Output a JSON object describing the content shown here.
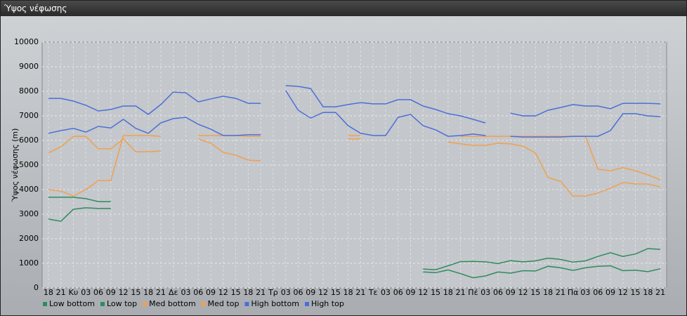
{
  "header": {
    "title": "Ύψος νέφωσης"
  },
  "chart_data": {
    "type": "line",
    "y_label": "Ύψος νέφωσης (m)",
    "categories": [
      "18",
      "21",
      "Κυ",
      "03",
      "06",
      "09",
      "12",
      "15",
      "18",
      "21",
      "Δε",
      "03",
      "06",
      "09",
      "12",
      "15",
      "18",
      "21",
      "Τρ",
      "03",
      "06",
      "09",
      "12",
      "15",
      "18",
      "21",
      "Τε",
      "03",
      "06",
      "09",
      "12",
      "15",
      "18",
      "21",
      "Πέ",
      "03",
      "06",
      "09",
      "12",
      "15",
      "18",
      "21",
      "Πα",
      "03",
      "06",
      "09",
      "12",
      "15",
      "18",
      "21"
    ],
    "ylim": [
      0,
      10000
    ],
    "yticks": [
      0,
      1000,
      2000,
      3000,
      4000,
      5000,
      6000,
      7000,
      8000,
      9000,
      10000
    ],
    "grid": true,
    "legend": "bottom-left",
    "series": [
      {
        "name": "Low bottom",
        "color": "#2e8b5e",
        "values": [
          2800,
          2710,
          3200,
          3260,
          3230,
          3230,
          null,
          null,
          null,
          null,
          null,
          null,
          null,
          null,
          null,
          null,
          null,
          null,
          null,
          null,
          null,
          null,
          null,
          null,
          null,
          null,
          null,
          null,
          null,
          null,
          650,
          620,
          730,
          580,
          410,
          490,
          650,
          600,
          700,
          690,
          880,
          820,
          710,
          820,
          880,
          900,
          700,
          720,
          660,
          780
        ]
      },
      {
        "name": "Low top",
        "color": "#2e8b5e",
        "values": [
          3690,
          3690,
          3690,
          3630,
          3510,
          3510,
          null,
          null,
          null,
          null,
          null,
          null,
          null,
          null,
          null,
          null,
          null,
          null,
          null,
          null,
          null,
          null,
          null,
          null,
          null,
          null,
          null,
          null,
          null,
          null,
          770,
          740,
          900,
          1070,
          1080,
          1060,
          990,
          1110,
          1060,
          1100,
          1210,
          1160,
          1050,
          1100,
          1280,
          1430,
          1280,
          1380,
          1600,
          1570
        ]
      },
      {
        "name": "Med bottom",
        "color": "#f0a050",
        "values": [
          4000,
          3940,
          3740,
          4000,
          4370,
          4370,
          6200,
          6200,
          6200,
          6170,
          null,
          null,
          6200,
          6200,
          6200,
          6200,
          6170,
          6170,
          null,
          null,
          null,
          null,
          null,
          null,
          6200,
          6200,
          null,
          null,
          null,
          null,
          null,
          null,
          null,
          6170,
          6170,
          6170,
          6170,
          6170,
          6170,
          6170,
          6170,
          6170,
          6170,
          6170,
          4830,
          4770,
          4890,
          4770,
          4600,
          4400
        ]
      },
      {
        "name": "Med top",
        "color": "#f0a050",
        "values": [
          5490,
          5740,
          6170,
          6170,
          5660,
          5660,
          6060,
          5540,
          5540,
          5570,
          null,
          null,
          6060,
          5890,
          5510,
          5400,
          5200,
          5170,
          null,
          null,
          null,
          null,
          null,
          null,
          6060,
          6060,
          null,
          null,
          null,
          null,
          null,
          null,
          5940,
          5860,
          5800,
          5800,
          5890,
          5860,
          5770,
          5490,
          4490,
          4340,
          3740,
          3740,
          3860,
          4060,
          4290,
          4230,
          4230,
          4110
        ]
      },
      {
        "name": "High bottom",
        "color": "#4a6fd8",
        "values": [
          6290,
          6400,
          6490,
          6340,
          6570,
          6510,
          6860,
          6490,
          6290,
          6710,
          6890,
          6940,
          6660,
          6460,
          6200,
          6200,
          6230,
          6230,
          null,
          8030,
          7230,
          6910,
          7140,
          7140,
          6600,
          6290,
          6200,
          6200,
          6940,
          7060,
          6600,
          6430,
          6170,
          6200,
          6260,
          6200,
          null,
          6170,
          6140,
          6140,
          6140,
          6140,
          6170,
          6170,
          6170,
          6400,
          7090,
          7090,
          7000,
          6970
        ]
      },
      {
        "name": "High top",
        "color": "#4a6fd8",
        "values": [
          7710,
          7710,
          7600,
          7430,
          7200,
          7260,
          7400,
          7400,
          7060,
          7460,
          7970,
          7940,
          7570,
          7690,
          7800,
          7710,
          7510,
          7510,
          null,
          8230,
          8200,
          8110,
          7370,
          7370,
          7460,
          7540,
          7490,
          7490,
          7660,
          7660,
          7400,
          7260,
          7090,
          7000,
          6860,
          6710,
          null,
          7110,
          7000,
          7000,
          7230,
          7340,
          7460,
          7400,
          7400,
          7290,
          7510,
          7510,
          7510,
          7490
        ]
      }
    ]
  }
}
